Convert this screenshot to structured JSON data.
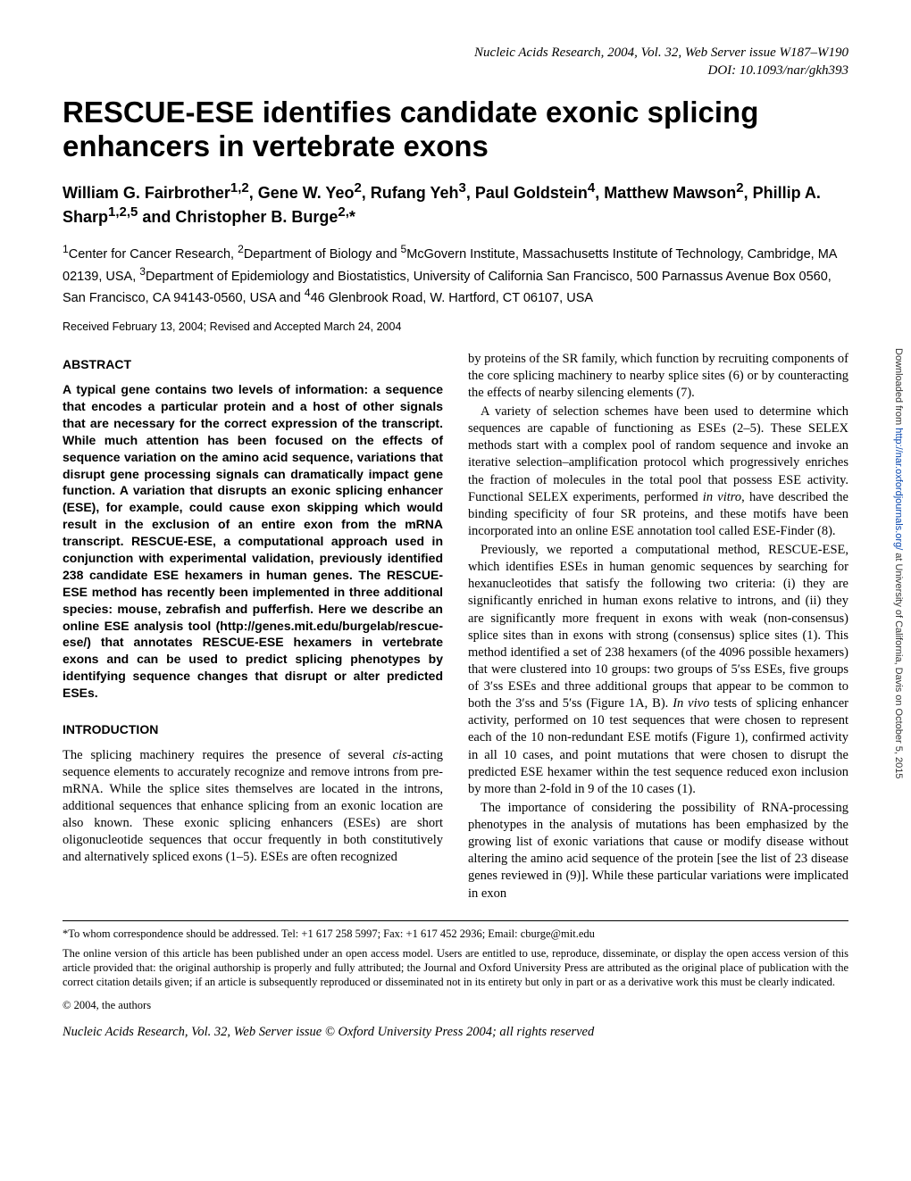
{
  "header": {
    "journal_line": "Nucleic Acids Research, 2004, Vol. 32, Web Server issue   W187–W190",
    "doi_line": "DOI: 10.1093/nar/gkh393"
  },
  "title": "RESCUE-ESE identifies candidate exonic splicing enhancers in vertebrate exons",
  "authors_html": "William G. Fairbrother<sup>1,2</sup>, Gene W. Yeo<sup>2</sup>, Rufang Yeh<sup>3</sup>, Paul Goldstein<sup>4</sup>, Matthew Mawson<sup>2</sup>, Phillip A. Sharp<sup>1,2,5</sup> and Christopher B. Burge<sup>2,</sup>*",
  "affiliations_html": "<sup>1</sup>Center for Cancer Research, <sup>2</sup>Department of Biology and <sup>5</sup>McGovern Institute, Massachusetts Institute of Technology, Cambridge, MA 02139, USA, <sup>3</sup>Department of Epidemiology and Biostatistics, University of California San Francisco, 500 Parnassus Avenue Box 0560, San Francisco, CA 94143-0560, USA and <sup>4</sup>46 Glenbrook Road, W. Hartford, CT 06107, USA",
  "received": "Received February 13, 2004; Revised and Accepted March 24, 2004",
  "abstract": {
    "heading": "ABSTRACT",
    "body": "A typical gene contains two levels of information: a sequence that encodes a particular protein and a host of other signals that are necessary for the correct expression of the transcript. While much attention has been focused on the effects of sequence variation on the amino acid sequence, variations that disrupt gene processing signals can dramatically impact gene function. A variation that disrupts an exonic splicing enhancer (ESE), for example, could cause exon skipping which would result in the exclusion of an entire exon from the mRNA transcript. RESCUE-ESE, a computational approach used in conjunction with experimental validation, previously identified 238 candidate ESE hexamers in human genes. The RESCUE-ESE method has recently been implemented in three additional species: mouse, zebrafish and pufferfish. Here we describe an online ESE analysis tool (http://genes.mit.edu/burgelab/rescue-ese/) that annotates RESCUE-ESE hexamers in vertebrate exons and can be used to predict splicing phenotypes by identifying sequence changes that disrupt or alter predicted ESEs."
  },
  "introduction": {
    "heading": "INTRODUCTION",
    "p1_html": "The splicing machinery requires the presence of several <i>cis</i>-acting sequence elements to accurately recognize and remove introns from pre-mRNA. While the splice sites themselves are located in the introns, additional sequences that enhance splicing from an exonic location are also known. These exonic splicing enhancers (ESEs) are short oligonucleotide sequences that occur frequently in both constitutively and alternatively spliced exons (1–5). ESEs are often recognized"
  },
  "right_column": {
    "p1": "by proteins of the SR family, which function by recruiting components of the core splicing machinery to nearby splice sites (6) or by counteracting the effects of nearby silencing elements (7).",
    "p2_html": "A variety of selection schemes have been used to determine which sequences are capable of functioning as ESEs (2–5). These SELEX methods start with a complex pool of random sequence and invoke an iterative selection–amplification protocol which progressively enriches the fraction of molecules in the total pool that possess ESE activity. Functional SELEX experiments, performed <i>in vitro</i>, have described the binding specificity of four SR proteins, and these motifs have been incorporated into an online ESE annotation tool called ESE-Finder (8).",
    "p3_html": "Previously, we reported a computational method, RESCUE-ESE, which identifies ESEs in human genomic sequences by searching for hexanucleotides that satisfy the following two criteria: (i) they are significantly enriched in human exons relative to introns, and (ii) they are significantly more frequent in exons with weak (non-consensus) splice sites than in exons with strong (consensus) splice sites (1). This method identified a set of 238 hexamers (of the 4096 possible hexamers) that were clustered into 10 groups: two groups of 5′ss ESEs, five groups of 3′ss ESEs and three additional groups that appear to be common to both the 3′ss and 5′ss (Figure 1A, B). <i>In vivo</i> tests of splicing enhancer activity, performed on 10 test sequences that were chosen to represent each of the 10 non-redundant ESE motifs (Figure 1), confirmed activity in all 10 cases, and point mutations that were chosen to disrupt the predicted ESE hexamer within the test sequence reduced exon inclusion by more than 2-fold in 9 of the 10 cases (1).",
    "p4": "The importance of considering the possibility of RNA-processing phenotypes in the analysis of mutations has been emphasized by the growing list of exonic variations that cause or modify disease without altering the amino acid sequence of the protein [see the list of 23 disease genes reviewed in (9)]. While these particular variations were implicated in exon"
  },
  "footnotes": {
    "correspondence": "*To whom correspondence should be addressed. Tel: +1 617 258 5997; Fax: +1 617 452 2936; Email: cburge@mit.edu",
    "open_access": "The online version of this article has been published under an open access model. Users are entitled to use, reproduce, disseminate, or display the open access version of this article provided that: the original authorship is properly and fully attributed; the Journal and Oxford University Press are attributed as the original place of publication with the correct citation details given; if an article is subsequently reproduced or disseminated not in its entirety but only in part or as a derivative work this must be clearly indicated.",
    "copyright": "© 2004, the authors"
  },
  "footer": "Nucleic Acids Research, Vol. 32, Web Server issue © Oxford University Press 2004; all rights reserved",
  "side_note_html": "Downloaded from <a>http://nar.oxfordjournals.org/</a> at University of California, Davis on October 5, 2015"
}
